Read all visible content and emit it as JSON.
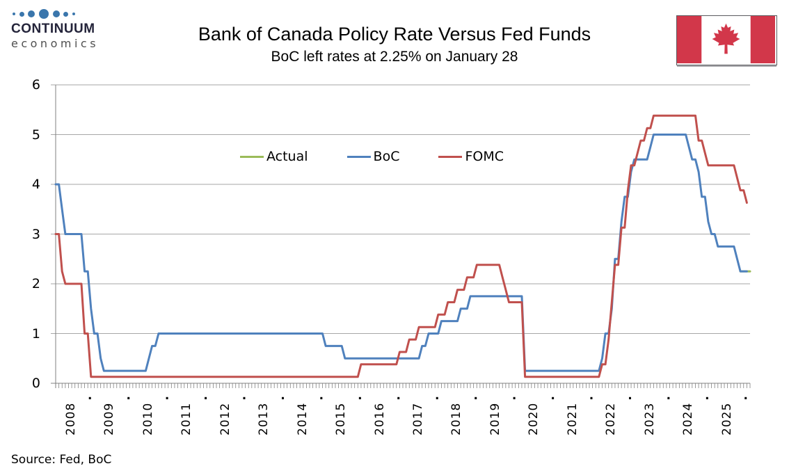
{
  "logo": {
    "line1": "CONTINUUM",
    "line2": "economics",
    "dot_color": "#3A76AC",
    "dot_sizes": [
      4,
      7,
      10,
      14,
      10,
      7,
      4
    ],
    "text_color_primary": "#24243a",
    "text_color_secondary": "#4f4f4f"
  },
  "title": "Bank of Canada Policy Rate Versus Fed Funds",
  "subtitle": "BoC left rates at 2.25% on January 28",
  "source": "Source: Fed, BoC",
  "flag": {
    "country": "Canada",
    "red": "#D2374A",
    "white": "#FFFFFF"
  },
  "legend": [
    {
      "label": "Actual",
      "color": "#9BBB59"
    },
    {
      "label": "BoC",
      "color": "#4F81BD"
    },
    {
      "label": "FOMC",
      "color": "#C0504D"
    }
  ],
  "chart_data": {
    "type": "line",
    "title": "Bank of Canada Policy Rate Versus Fed Funds",
    "subtitle": "BoC left rates at 2.25% on January 28",
    "xlabel": "",
    "ylabel": "",
    "ylim": [
      0,
      6
    ],
    "yticks": [
      "0",
      "1",
      "2",
      "3",
      "4",
      "5",
      "6"
    ],
    "x_range": [
      "2008-01",
      "2026-01"
    ],
    "x_tick_years": [
      "2008",
      "2009",
      "2010",
      "2011",
      "2012",
      "2013",
      "2014",
      "2015",
      "2016",
      "2017",
      "2018",
      "2019",
      "2020",
      "2021",
      "2022",
      "2023",
      "2024",
      "2025"
    ],
    "x_midyear_label": ".",
    "x_minor_ticks": "monthly",
    "grid": "horizontal",
    "grid_color": "#A6A6A6",
    "axis_color": "#808080",
    "legend_position": "top-center",
    "series": [
      {
        "name": "Actual",
        "color": "#9BBB59",
        "end": "2026-01",
        "changes": [
          [
            "2025-10",
            2.25
          ]
        ]
      },
      {
        "name": "BoC",
        "color": "#4F81BD",
        "end": "2025-12",
        "changes": [
          [
            "2008-01",
            4.0
          ],
          [
            "2008-03",
            3.5
          ],
          [
            "2008-04",
            3.0
          ],
          [
            "2008-10",
            2.25
          ],
          [
            "2008-12",
            1.5
          ],
          [
            "2009-01",
            1.0
          ],
          [
            "2009-03",
            0.5
          ],
          [
            "2009-04",
            0.25
          ],
          [
            "2010-06",
            0.5
          ],
          [
            "2010-07",
            0.75
          ],
          [
            "2010-09",
            1.0
          ],
          [
            "2015-01",
            0.75
          ],
          [
            "2015-07",
            0.5
          ],
          [
            "2017-07",
            0.75
          ],
          [
            "2017-09",
            1.0
          ],
          [
            "2018-01",
            1.25
          ],
          [
            "2018-07",
            1.5
          ],
          [
            "2018-10",
            1.75
          ],
          [
            "2020-03",
            0.25
          ],
          [
            "2022-03",
            0.5
          ],
          [
            "2022-04",
            1.0
          ],
          [
            "2022-06",
            1.5
          ],
          [
            "2022-07",
            2.5
          ],
          [
            "2022-09",
            3.25
          ],
          [
            "2022-10",
            3.75
          ],
          [
            "2022-12",
            4.25
          ],
          [
            "2023-01",
            4.5
          ],
          [
            "2023-06",
            4.75
          ],
          [
            "2023-07",
            5.0
          ],
          [
            "2024-06",
            4.75
          ],
          [
            "2024-07",
            4.5
          ],
          [
            "2024-09",
            4.25
          ],
          [
            "2024-10",
            3.75
          ],
          [
            "2024-12",
            3.25
          ],
          [
            "2025-01",
            3.0
          ],
          [
            "2025-03",
            2.75
          ],
          [
            "2025-09",
            2.5
          ],
          [
            "2025-10",
            2.25
          ]
        ]
      },
      {
        "name": "FOMC",
        "color": "#C0504D",
        "end": "2025-12",
        "changes": [
          [
            "2008-01",
            3.0
          ],
          [
            "2008-03",
            2.25
          ],
          [
            "2008-04",
            2.0
          ],
          [
            "2008-10",
            1.0
          ],
          [
            "2008-12",
            0.13
          ],
          [
            "2015-12",
            0.38
          ],
          [
            "2016-12",
            0.63
          ],
          [
            "2017-03",
            0.88
          ],
          [
            "2017-06",
            1.13
          ],
          [
            "2017-12",
            1.38
          ],
          [
            "2018-03",
            1.63
          ],
          [
            "2018-06",
            1.88
          ],
          [
            "2018-09",
            2.13
          ],
          [
            "2018-12",
            2.38
          ],
          [
            "2019-08",
            2.13
          ],
          [
            "2019-09",
            1.88
          ],
          [
            "2019-10",
            1.63
          ],
          [
            "2020-03",
            0.13
          ],
          [
            "2022-03",
            0.38
          ],
          [
            "2022-05",
            0.88
          ],
          [
            "2022-06",
            1.63
          ],
          [
            "2022-07",
            2.38
          ],
          [
            "2022-09",
            3.13
          ],
          [
            "2022-11",
            3.88
          ],
          [
            "2022-12",
            4.38
          ],
          [
            "2023-02",
            4.63
          ],
          [
            "2023-03",
            4.88
          ],
          [
            "2023-05",
            5.13
          ],
          [
            "2023-07",
            5.38
          ],
          [
            "2024-09",
            4.88
          ],
          [
            "2024-11",
            4.63
          ],
          [
            "2024-12",
            4.38
          ],
          [
            "2025-09",
            4.13
          ],
          [
            "2025-10",
            3.88
          ],
          [
            "2025-12",
            3.63
          ]
        ]
      }
    ]
  }
}
